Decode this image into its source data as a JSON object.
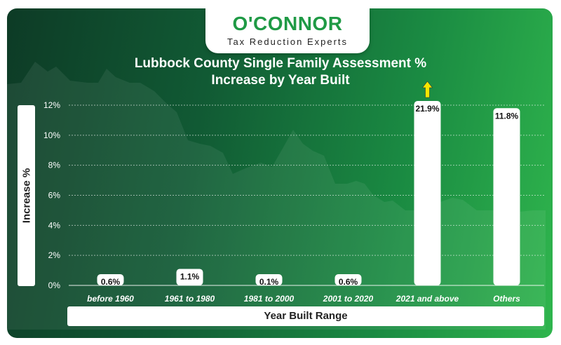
{
  "brand": {
    "name": "O'CONNOR",
    "tagline": "Tax Reduction Experts"
  },
  "colors": {
    "background_dark": "#0d3b26",
    "background_light": "#2fb54d",
    "bar": "#ffffff",
    "arrow": "#f5e600",
    "brand_green": "#1f9a45"
  },
  "chart_data": {
    "type": "bar",
    "title_line1": "Lubbock County Single Family Assessment %",
    "title_line2": "Increase by Year Built",
    "xlabel": "Year Built Range",
    "ylabel": "Increase %",
    "ylim": [
      0,
      12
    ],
    "yticks": [
      "0%",
      "2%",
      "4%",
      "6%",
      "8%",
      "10%",
      "12%"
    ],
    "grid": "horizontal",
    "categories": [
      "before 1960",
      "1961 to 1980",
      "1981 to 2000",
      "2001 to 2020",
      "2021 and above",
      "Others"
    ],
    "values": [
      0.6,
      1.1,
      0.1,
      0.6,
      21.9,
      11.8
    ],
    "data_labels": [
      "0.6%",
      "1.1%",
      "0.1%",
      "0.6%",
      "21.9%",
      "11.8%"
    ],
    "clipped_above_axis": [
      false,
      false,
      false,
      false,
      true,
      false
    ]
  }
}
